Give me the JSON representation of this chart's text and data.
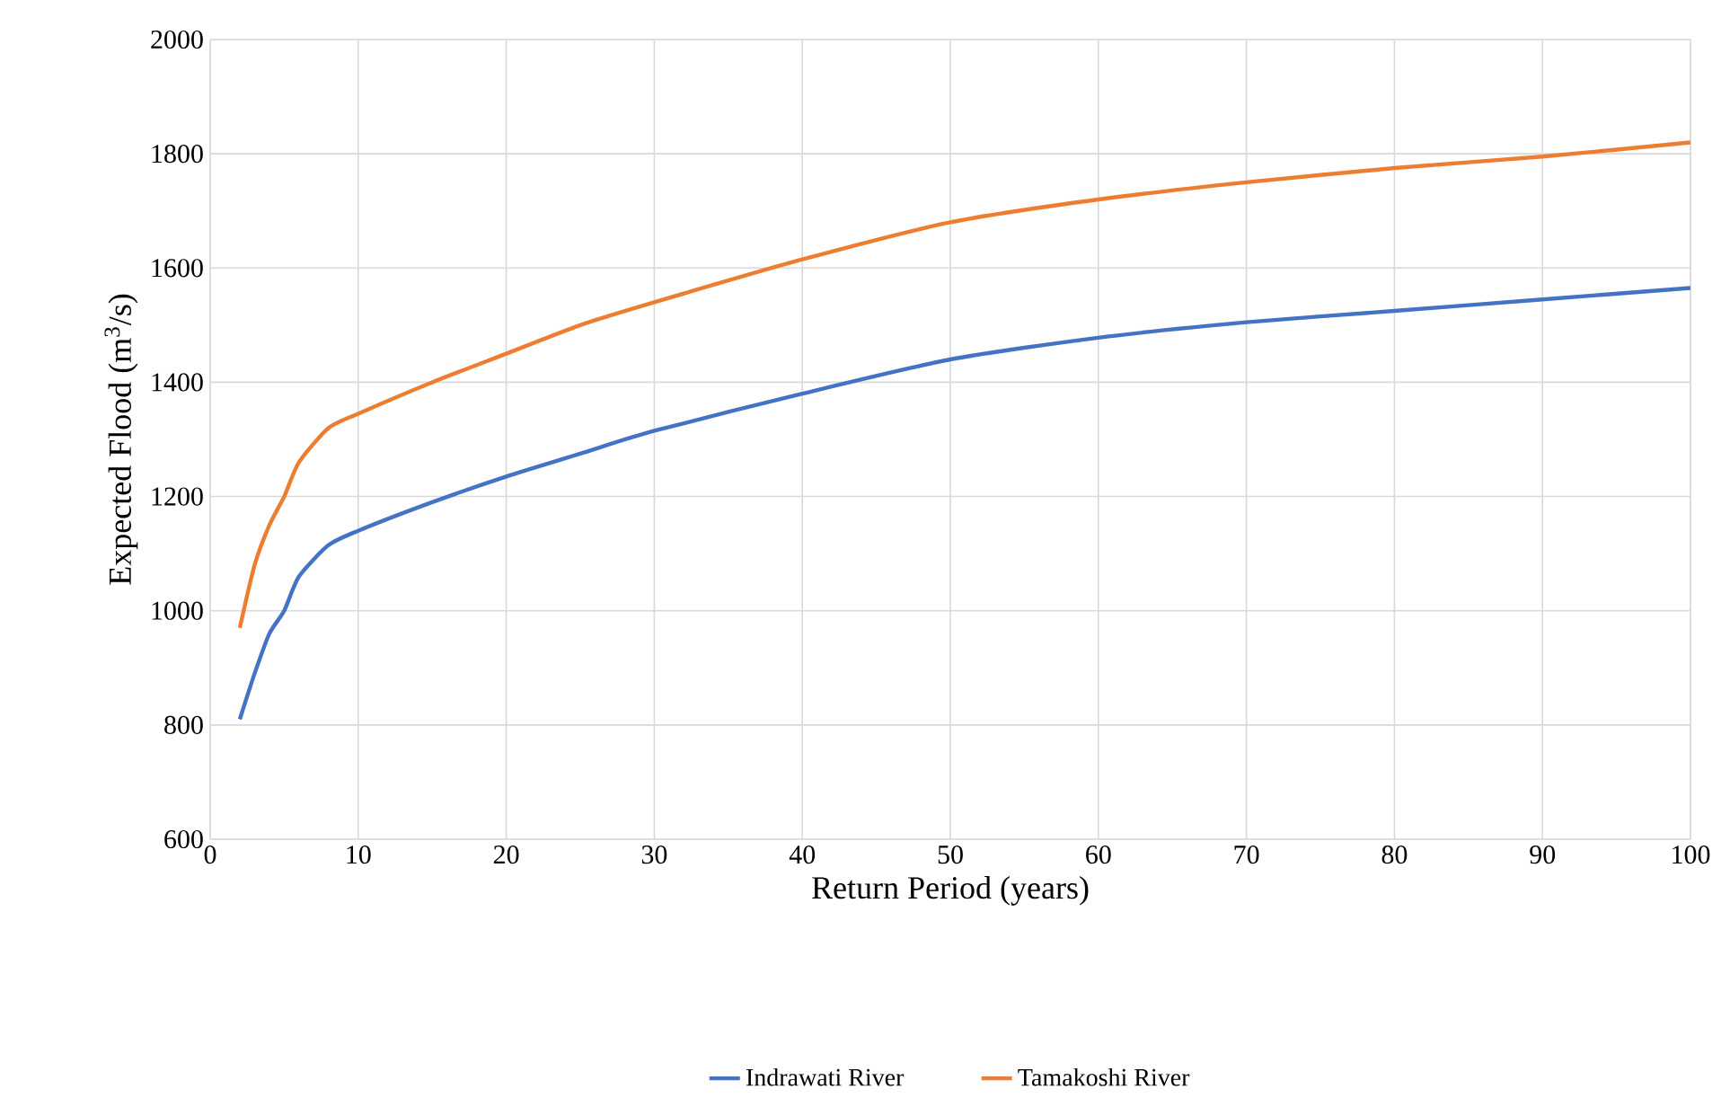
{
  "chart_data": {
    "type": "line",
    "xlabel": "Return Period (years)",
    "ylabel": "Expected Flood (m$^{3}$/s)",
    "xlim": [
      0,
      100
    ],
    "ylim": [
      600,
      2000
    ],
    "xticks": [
      0,
      10,
      20,
      30,
      40,
      50,
      60,
      70,
      80,
      90,
      100
    ],
    "yticks": [
      600,
      800,
      1000,
      1200,
      1400,
      1600,
      1800,
      2000
    ],
    "grid": true,
    "legend": "bottom",
    "series": [
      {
        "name": "Indrawati River",
        "color": "#4472c4",
        "x": [
          2,
          3,
          4,
          5,
          6,
          8,
          10,
          15,
          20,
          25,
          30,
          40,
          50,
          60,
          70,
          80,
          90,
          100
        ],
        "values": [
          810,
          890,
          960,
          1000,
          1060,
          1115,
          1140,
          1190,
          1235,
          1275,
          1315,
          1380,
          1440,
          1478,
          1505,
          1525,
          1545,
          1565
        ]
      },
      {
        "name": "Tamakoshi River",
        "color": "#ed7d31",
        "x": [
          2,
          3,
          4,
          5,
          6,
          8,
          10,
          15,
          20,
          25,
          30,
          40,
          50,
          60,
          70,
          80,
          90,
          100
        ],
        "values": [
          970,
          1080,
          1150,
          1200,
          1260,
          1320,
          1345,
          1400,
          1450,
          1500,
          1540,
          1615,
          1680,
          1720,
          1750,
          1775,
          1795,
          1820
        ]
      }
    ]
  }
}
